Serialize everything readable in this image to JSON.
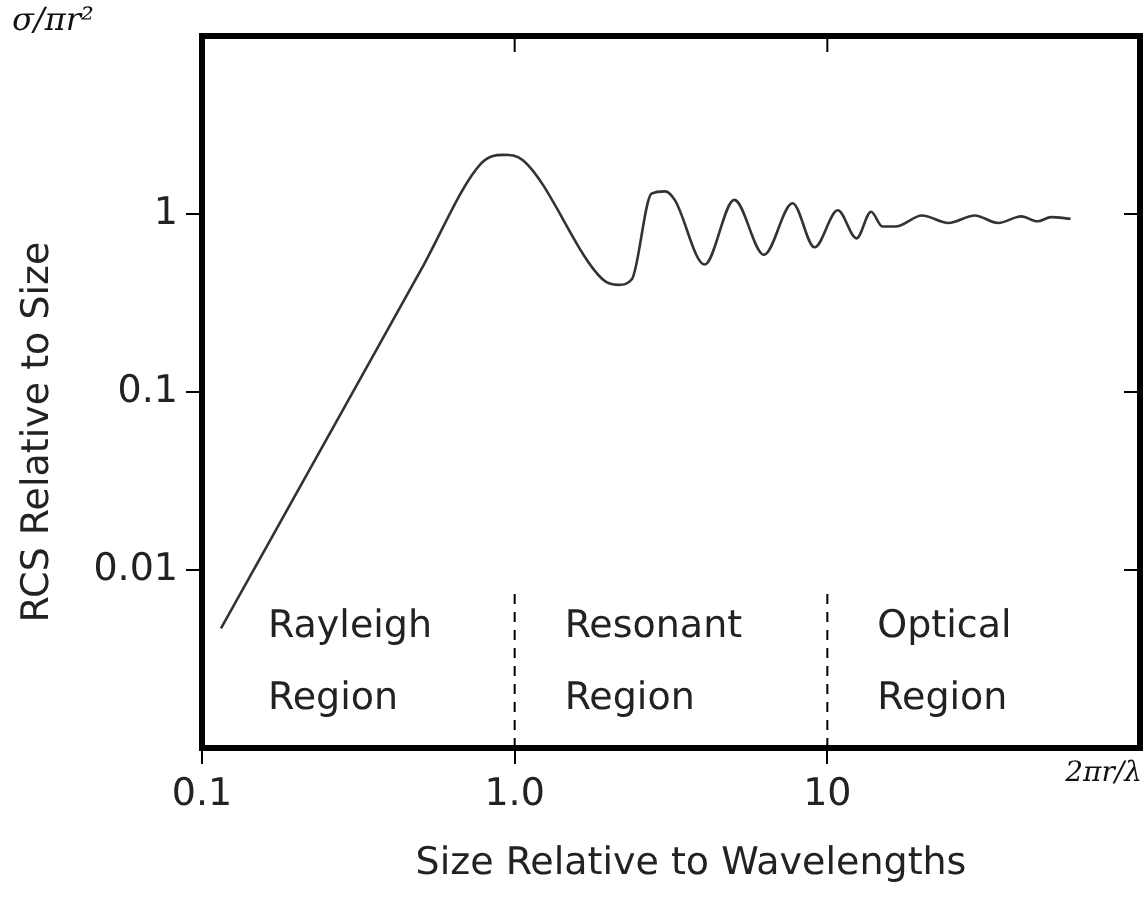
{
  "chart_data": {
    "type": "line",
    "xlabel": "Size Relative to Wavelengths",
    "ylabel": "RCS Relative to Size",
    "log": "xy",
    "grid": false,
    "legend": false,
    "marker": "none",
    "line_style": "solid",
    "xlim": [
      0.1,
      100
    ],
    "xticks": [
      0.1,
      {
        "value": 1,
        "label": "1.0"
      },
      10
    ],
    "ylim": [
      0.001,
      10
    ],
    "yticks": [
      1,
      0.1,
      0.01
    ],
    "series": [
      {
        "color": "#333333",
        "x": [
          0.115,
          0.3,
          0.5,
          0.78,
          0.92,
          1.065,
          1.91,
          2.15,
          2.37,
          2.74,
          3.03,
          3.25,
          4.05,
          5.04,
          6.27,
          7.74,
          9.1,
          10.8,
          12.4,
          13.8,
          15.0,
          16.5,
          20.1,
          24.4,
          29.6,
          35.2,
          41.7,
          47,
          52,
          60
        ],
        "values": [
          0.0047,
          0.096,
          0.48,
          1.92,
          2.15,
          2.0,
          0.43,
          0.4,
          0.43,
          1.3,
          1.34,
          1.2,
          0.52,
          1.2,
          0.59,
          1.15,
          0.65,
          1.05,
          0.73,
          1.03,
          0.85,
          0.85,
          0.98,
          0.89,
          0.98,
          0.89,
          0.97,
          0.91,
          0.96,
          0.94
        ]
      }
    ],
    "ref_lines": [
      {
        "axis": "x",
        "value": 1,
        "line_style": "dashed"
      },
      {
        "axis": "x",
        "value": 10,
        "line_style": "dashed"
      }
    ],
    "annotations": [
      "Rayleigh Region",
      "Resonant Region",
      "Optical Region",
      "σ/πr²",
      "2πr/λ"
    ]
  }
}
